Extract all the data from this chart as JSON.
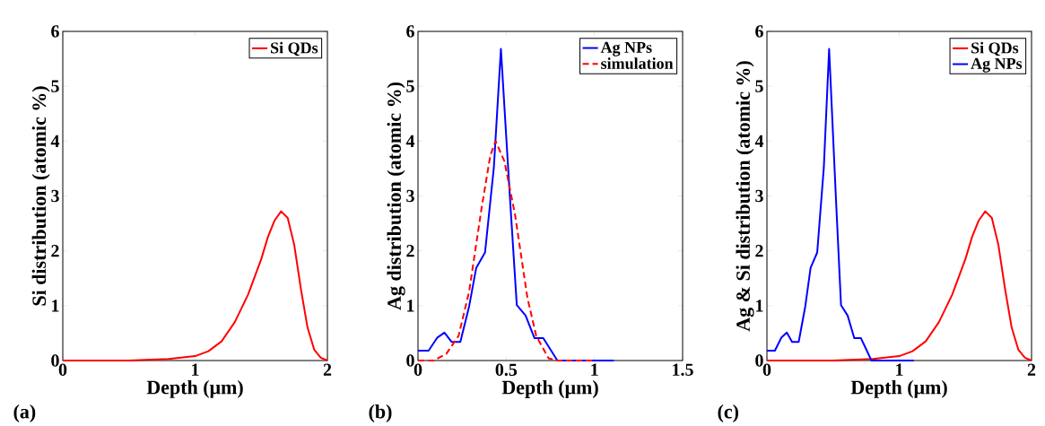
{
  "chart_data": [
    {
      "type": "line",
      "xlabel": "Depth (μm)",
      "ylabel": "Si distribution (atomic %)",
      "annotations": [
        "(a)"
      ],
      "xlim": [
        0,
        2
      ],
      "ylim": [
        0,
        6
      ],
      "xticks": [
        0,
        1,
        2
      ],
      "yticks": [
        0,
        1,
        2,
        3,
        4,
        5,
        6
      ],
      "legend": "top right",
      "line_style": "solid",
      "marker": "none",
      "series": [
        {
          "name": "Si QDs",
          "color": "#ff0000",
          "x": [
            0,
            0.5,
            0.8,
            1.0,
            1.1,
            1.2,
            1.3,
            1.4,
            1.5,
            1.55,
            1.6,
            1.65,
            1.7,
            1.75,
            1.8,
            1.85,
            1.9,
            1.95,
            2.0
          ],
          "values": [
            0,
            0,
            0.03,
            0.08,
            0.17,
            0.35,
            0.7,
            1.2,
            1.85,
            2.25,
            2.55,
            2.72,
            2.6,
            2.1,
            1.3,
            0.6,
            0.2,
            0.05,
            0
          ]
        }
      ]
    },
    {
      "type": "line",
      "xlabel": "Depth (μm)",
      "ylabel": "Ag distribution (atomic %)",
      "annotations": [
        "(b)"
      ],
      "xlim": [
        0,
        1.5
      ],
      "ylim": [
        0,
        6
      ],
      "xticks": [
        0,
        0.5,
        1,
        1.5
      ],
      "yticks": [
        0,
        1,
        2,
        3,
        4,
        5,
        6
      ],
      "legend": "top right",
      "marker": "none",
      "series": [
        {
          "name": "Ag NPs",
          "color": "#0000ff",
          "line_style": "solid",
          "x": [
            0,
            0.06,
            0.11,
            0.15,
            0.19,
            0.24,
            0.29,
            0.33,
            0.38,
            0.43,
            0.47,
            0.52,
            0.56,
            0.61,
            0.66,
            0.71,
            0.79,
            1.11
          ],
          "values": [
            0.18,
            0.18,
            0.42,
            0.51,
            0.34,
            0.34,
            0.99,
            1.69,
            1.97,
            3.52,
            5.68,
            3.03,
            1.01,
            0.82,
            0.41,
            0.41,
            0,
            0
          ]
        },
        {
          "name": "simulation",
          "color": "#ff0000",
          "line_style": "dashed",
          "x": [
            0,
            0.09,
            0.16,
            0.23,
            0.29,
            0.36,
            0.41,
            0.44,
            0.49,
            0.55,
            0.62,
            0.67,
            0.74,
            0.79,
            1.0
          ],
          "values": [
            0,
            0,
            0.12,
            0.45,
            1.26,
            2.77,
            3.74,
            4.0,
            3.63,
            2.66,
            1.15,
            0.45,
            0.04,
            0,
            0
          ]
        }
      ]
    },
    {
      "type": "line",
      "xlabel": "Depth (μm)",
      "ylabel": "Ag & Si distribution (atomic %)",
      "annotations": [
        "(c)"
      ],
      "xlim": [
        0,
        2
      ],
      "ylim": [
        0,
        6
      ],
      "xticks": [
        0,
        1,
        2
      ],
      "yticks": [
        0,
        1,
        2,
        3,
        4,
        5,
        6
      ],
      "legend": "top right",
      "line_style": "solid",
      "marker": "none",
      "series": [
        {
          "name": "Si QDs",
          "color": "#ff0000",
          "x": [
            0,
            0.5,
            0.8,
            1.0,
            1.1,
            1.2,
            1.3,
            1.4,
            1.5,
            1.55,
            1.6,
            1.65,
            1.7,
            1.75,
            1.8,
            1.85,
            1.9,
            1.95,
            2.0
          ],
          "values": [
            0,
            0,
            0.03,
            0.08,
            0.17,
            0.35,
            0.7,
            1.2,
            1.85,
            2.25,
            2.55,
            2.72,
            2.6,
            2.1,
            1.3,
            0.6,
            0.2,
            0.05,
            0
          ]
        },
        {
          "name": "Ag NPs",
          "color": "#0000ff",
          "x": [
            0,
            0.06,
            0.11,
            0.15,
            0.19,
            0.24,
            0.29,
            0.33,
            0.38,
            0.43,
            0.47,
            0.52,
            0.56,
            0.61,
            0.66,
            0.71,
            0.79,
            1.11
          ],
          "values": [
            0.18,
            0.18,
            0.42,
            0.51,
            0.34,
            0.34,
            0.99,
            1.69,
            1.97,
            3.52,
            5.68,
            3.03,
            1.01,
            0.82,
            0.41,
            0.41,
            0,
            0
          ]
        }
      ]
    }
  ]
}
